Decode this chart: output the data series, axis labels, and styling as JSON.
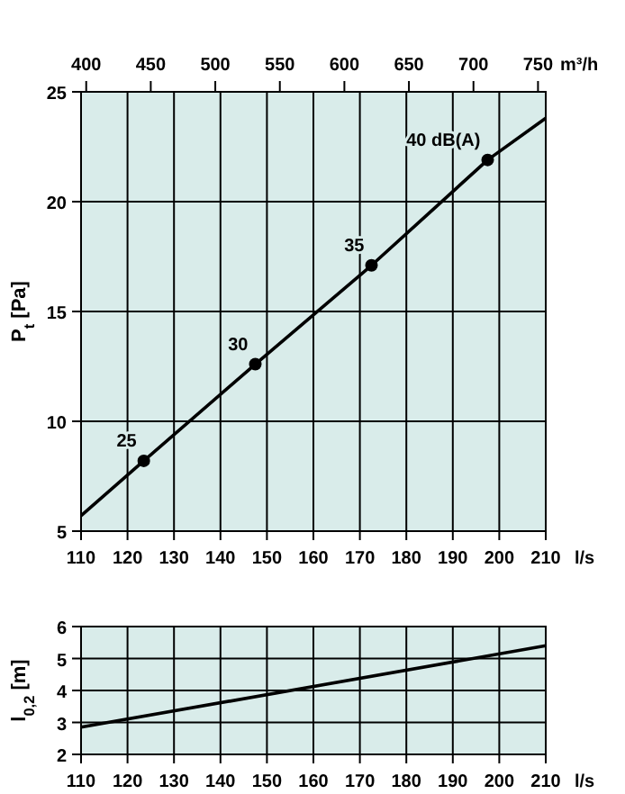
{
  "chart_data": [
    {
      "type": "line",
      "xlabel": "l/s",
      "ylabel": "P$_{t}$ [Pa]",
      "x2label": "m³/h",
      "xlim": [
        110,
        210
      ],
      "xticks": [
        110,
        120,
        130,
        140,
        150,
        160,
        170,
        180,
        190,
        200,
        210
      ],
      "x2lim": [
        396,
        756
      ],
      "x2ticks": [
        400,
        450,
        500,
        550,
        600,
        650,
        700,
        750
      ],
      "ylim": [
        5,
        25
      ],
      "yticks": [
        5,
        10,
        15,
        20,
        25
      ],
      "grid": true,
      "series": [
        {
          "color": "#000000",
          "x": [
            110,
            123.5,
            147.5,
            172.5,
            197.5,
            210
          ],
          "values": [
            5.7,
            8.2,
            12.6,
            17.1,
            21.9,
            23.8
          ],
          "marker": "none"
        },
        {
          "type": "scatter",
          "color": "#000000",
          "x": [
            123.5,
            147.5,
            172.5,
            197.5
          ],
          "values": [
            8.2,
            12.6,
            17.1,
            21.9
          ],
          "marker": "circle"
        }
      ],
      "annotations": [
        {
          "text": "25",
          "x": 123.5,
          "y": 8.2
        },
        {
          "text": "30",
          "x": 147.5,
          "y": 12.6
        },
        {
          "text": "35",
          "x": 172.5,
          "y": 17.1
        },
        {
          "text": "40 dB(A)",
          "x": 197.5,
          "y": 21.9
        }
      ]
    },
    {
      "type": "line",
      "xlabel": "l/s",
      "ylabel": "l$_{0,2}$ [m]",
      "xlim": [
        110,
        210
      ],
      "xticks": [
        110,
        120,
        130,
        140,
        150,
        160,
        170,
        180,
        190,
        200,
        210
      ],
      "ylim": [
        2,
        6
      ],
      "yticks": [
        2,
        3,
        4,
        5,
        6
      ],
      "grid": true,
      "series": [
        {
          "color": "#000000",
          "x": [
            110,
            210
          ],
          "values": [
            2.85,
            5.4
          ],
          "marker": "none"
        }
      ]
    }
  ]
}
